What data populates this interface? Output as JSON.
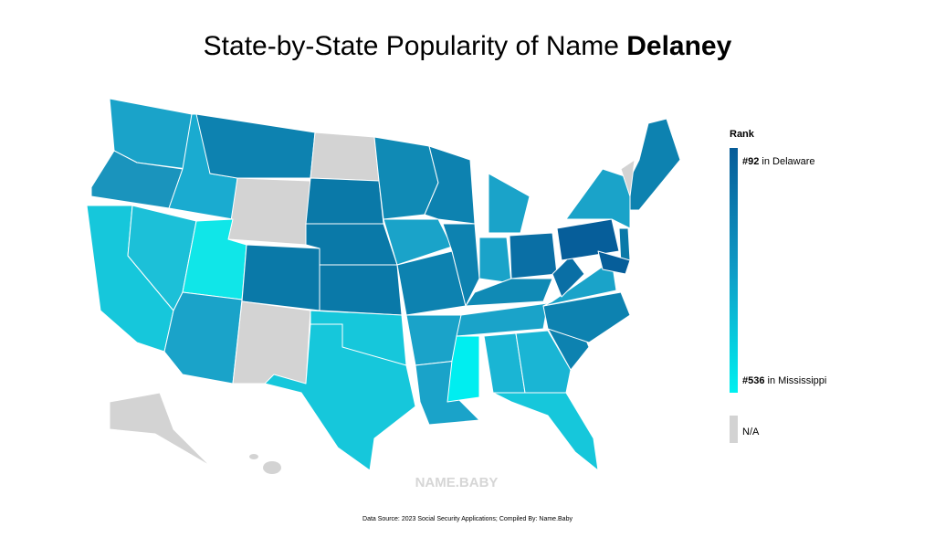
{
  "header": {
    "title_prefix": "State-by-State Popularity of Name",
    "title_name": "Delaney"
  },
  "legend": {
    "title": "Rank",
    "top": {
      "rank": "#92",
      "label": "in Delaware"
    },
    "bottom": {
      "rank": "#536",
      "label": "in Mississippi"
    },
    "na": "N/A"
  },
  "watermark": "NAME.BABY",
  "footer": {
    "source": "Data Source: 2023 Social Security Applications; Compiled By: Name.Baby"
  }
}
